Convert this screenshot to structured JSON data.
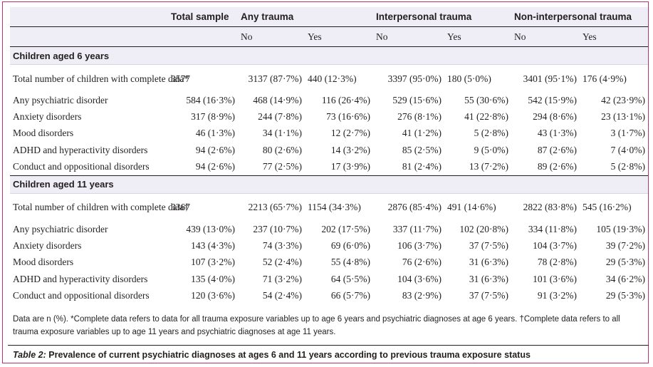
{
  "header": {
    "total_sample": "Total sample",
    "any_trauma": "Any trauma",
    "interpersonal_trauma": "Interpersonal trauma",
    "non_interpersonal_trauma": "Non-interpersonal trauma",
    "no": "No",
    "yes": "Yes"
  },
  "sections": [
    {
      "title": "Children aged 6 years",
      "rows": [
        {
          "label": "Total number of children with complete data*",
          "total": "3577",
          "any_no": "3137 (87·7%)",
          "any_yes": "440 (12·3%)",
          "inter_no": "3397 (95·0%)",
          "inter_yes": "180 (5·0%)",
          "non_no": "3401 (95·1%)",
          "non_yes": "176 (4·9%)"
        },
        {
          "label": "Any psychiatric disorder",
          "total": "584 (16·3%)",
          "any_no": "468 (14·9%)",
          "any_yes": "116 (26·4%)",
          "inter_no": "529 (15·6%)",
          "inter_yes": "55 (30·6%)",
          "non_no": "542 (15·9%)",
          "non_yes": "42 (23·9%)"
        },
        {
          "label": "Anxiety disorders",
          "total": "317 (8·9%)",
          "any_no": "244 (7·8%)",
          "any_yes": "73 (16·6%)",
          "inter_no": "276 (8·1%)",
          "inter_yes": "41 (22·8%)",
          "non_no": "294 (8·6%)",
          "non_yes": "23 (13·1%)"
        },
        {
          "label": "Mood disorders",
          "total": "46 (1·3%)",
          "any_no": "34 (1·1%)",
          "any_yes": "12 (2·7%)",
          "inter_no": "41 (1·2%)",
          "inter_yes": "5 (2·8%)",
          "non_no": "43 (1·3%)",
          "non_yes": "3 (1·7%)"
        },
        {
          "label": "ADHD and hyperactivity disorders",
          "total": "94 (2·6%)",
          "any_no": "80 (2·6%)",
          "any_yes": "14 (3·2%)",
          "inter_no": "85 (2·5%)",
          "inter_yes": "9 (5·0%)",
          "non_no": "87 (2·6%)",
          "non_yes": "7 (4·0%)"
        },
        {
          "label": "Conduct and oppositional disorders",
          "total": "94 (2·6%)",
          "any_no": "77 (2·5%)",
          "any_yes": "17 (3·9%)",
          "inter_no": "81 (2·4%)",
          "inter_yes": "13 (7·2%)",
          "non_no": "89 (2·6%)",
          "non_yes": "5 (2·8%)"
        }
      ]
    },
    {
      "title": "Children aged 11 years",
      "rows": [
        {
          "label": "Total number of children with complete data†",
          "total": "3367",
          "any_no": "2213 (65·7%)",
          "any_yes": "1154 (34·3%)",
          "inter_no": "2876 (85·4%)",
          "inter_yes": "491 (14·6%)",
          "non_no": "2822 (83·8%)",
          "non_yes": "545 (16·2%)"
        },
        {
          "label": "Any psychiatric disorder",
          "total": "439 (13·0%)",
          "any_no": "237 (10·7%)",
          "any_yes": "202 (17·5%)",
          "inter_no": "337 (11·7%)",
          "inter_yes": "102 (20·8%)",
          "non_no": "334 (11·8%)",
          "non_yes": "105 (19·3%)"
        },
        {
          "label": "Anxiety disorders",
          "total": "143 (4·3%)",
          "any_no": "74 (3·3%)",
          "any_yes": "69 (6·0%)",
          "inter_no": "106 (3·7%)",
          "inter_yes": "37 (7·5%)",
          "non_no": "104 (3·7%)",
          "non_yes": "39 (7·2%)"
        },
        {
          "label": "Mood disorders",
          "total": "107 (3·2%)",
          "any_no": "52 (2·4%)",
          "any_yes": "55 (4·8%)",
          "inter_no": "76 (2·6%)",
          "inter_yes": "31 (6·3%)",
          "non_no": "78 (2·8%)",
          "non_yes": "29 (5·3%)"
        },
        {
          "label": "ADHD and hyperactivity disorders",
          "total": "135 (4·0%)",
          "any_no": "71 (3·2%)",
          "any_yes": "64 (5·5%)",
          "inter_no": "104 (3·6%)",
          "inter_yes": "31 (6·3%)",
          "non_no": "101 (3·6%)",
          "non_yes": "34 (6·2%)"
        },
        {
          "label": "Conduct and oppositional disorders",
          "total": "120 (3·6%)",
          "any_no": "54 (2·4%)",
          "any_yes": "66 (5·7%)",
          "inter_no": "83 (2·9%)",
          "inter_yes": "37 (7·5%)",
          "non_no": "91 (3·2%)",
          "non_yes": "29 (5·3%)"
        }
      ]
    }
  ],
  "notes": "Data are n (%). *Complete data refers to data for all trauma exposure variables up to age 6 years and psychiatric diagnoses at age 6 years. †Complete data refers to all trauma exposure variables up to age 11 years and psychiatric diagnoses at age 11 years.",
  "caption": {
    "label": "Table 2:",
    "text": " Prevalence of current psychiatric diagnoses at ages 6 and 11 years according to previous trauma exposure status"
  },
  "colors": {
    "frame": "#b8336a",
    "shade": "#efedf5",
    "text": "#231f20"
  }
}
